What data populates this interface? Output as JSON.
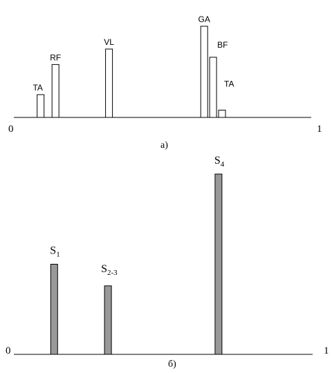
{
  "chart_data": [
    {
      "type": "bar",
      "panel_label": "а)",
      "x_range": [
        0,
        1
      ],
      "x_start_label": "0",
      "x_end_label": "1",
      "y_range": [
        0,
        1
      ],
      "grid": false,
      "bar_fill": "#ffffff",
      "bar_stroke": "#000000",
      "bars": [
        {
          "label": "TA",
          "x": 0.09,
          "value": 0.25
        },
        {
          "label": "RF",
          "x": 0.14,
          "value": 0.58
        },
        {
          "label": "VL",
          "x": 0.32,
          "value": 0.75
        },
        {
          "label": "GA",
          "x": 0.64,
          "value": 1.0
        },
        {
          "label": "BF",
          "x": 0.67,
          "value": 0.66
        },
        {
          "label": "TA",
          "x": 0.7,
          "value": 0.08
        }
      ]
    },
    {
      "type": "bar",
      "panel_label": "б)",
      "x_range": [
        0,
        1
      ],
      "x_start_label": "0",
      "x_end_label": "1",
      "y_range": [
        0,
        1
      ],
      "grid": false,
      "bar_fill": "#999999",
      "bar_stroke": "#000000",
      "bars": [
        {
          "label_main": "S",
          "label_sub": "1",
          "x": 0.135,
          "value": 0.5
        },
        {
          "label_main": "S",
          "label_sub": "2-3",
          "x": 0.315,
          "value": 0.38
        },
        {
          "label_main": "S",
          "label_sub": "4",
          "x": 0.685,
          "value": 1.0
        }
      ]
    }
  ]
}
